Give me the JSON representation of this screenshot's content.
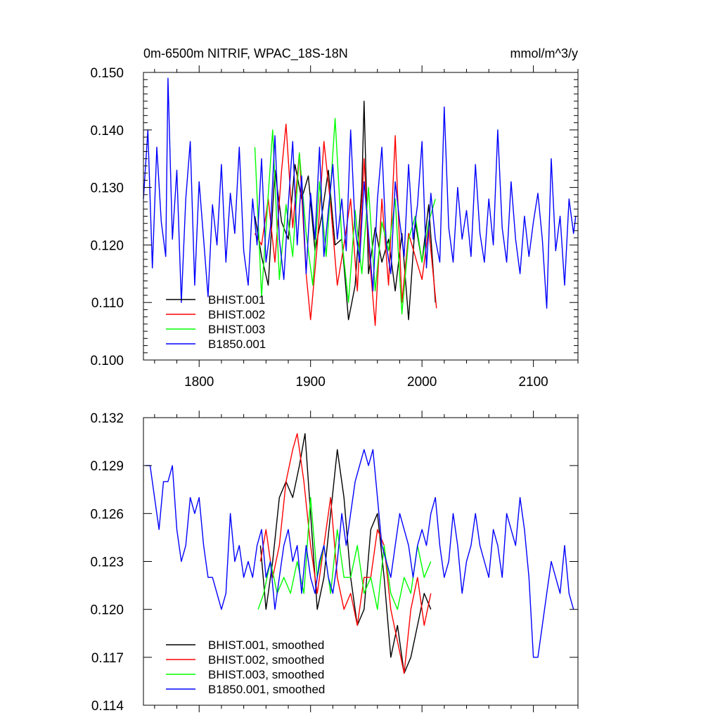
{
  "chart_data": [
    {
      "type": "line",
      "title": "0m-6500m NITRIF, WPAC_18S-18N",
      "units": "mmol/m^3/y",
      "xlim": [
        1750,
        2140
      ],
      "ylim": [
        0.1,
        0.15
      ],
      "xticks": [
        1800,
        1900,
        2000,
        2100
      ],
      "xtick_labels": [
        "1800",
        "1900",
        "2000",
        "2100"
      ],
      "yticks": [
        0.1,
        0.11,
        0.12,
        0.13,
        0.14,
        0.15
      ],
      "ytick_labels": [
        "0.100",
        "0.110",
        "0.120",
        "0.130",
        "0.140",
        "0.150"
      ],
      "legend_position": "bottom-left",
      "series": [
        {
          "name": "BHIST.001",
          "color": "#000000",
          "x": [
            1850,
            1856,
            1862,
            1868,
            1874,
            1880,
            1886,
            1892,
            1898,
            1904,
            1910,
            1916,
            1922,
            1928,
            1934,
            1940,
            1946,
            1948,
            1952,
            1958,
            1964,
            1970,
            1976,
            1982,
            1988,
            1994,
            2000,
            2006,
            2012
          ],
          "y": [
            0.125,
            0.118,
            0.113,
            0.133,
            0.124,
            0.121,
            0.134,
            0.128,
            0.132,
            0.119,
            0.125,
            0.133,
            0.12,
            0.121,
            0.107,
            0.113,
            0.13,
            0.145,
            0.115,
            0.123,
            0.117,
            0.121,
            0.112,
            0.122,
            0.107,
            0.124,
            0.117,
            0.127,
            0.11
          ]
        },
        {
          "name": "BHIST.002",
          "color": "#ff0000",
          "x": [
            1850,
            1856,
            1862,
            1868,
            1874,
            1878,
            1884,
            1890,
            1896,
            1900,
            1906,
            1912,
            1918,
            1924,
            1930,
            1936,
            1942,
            1948,
            1952,
            1958,
            1964,
            1970,
            1976,
            1982,
            1988,
            1994,
            2000,
            2006,
            2013
          ],
          "y": [
            0.122,
            0.12,
            0.128,
            0.117,
            0.133,
            0.141,
            0.123,
            0.136,
            0.115,
            0.107,
            0.12,
            0.138,
            0.127,
            0.113,
            0.12,
            0.128,
            0.112,
            0.135,
            0.12,
            0.106,
            0.128,
            0.113,
            0.139,
            0.11,
            0.122,
            0.118,
            0.114,
            0.123,
            0.109
          ]
        },
        {
          "name": "BHIST.003",
          "color": "#00ff00",
          "x": [
            1850,
            1856,
            1860,
            1866,
            1872,
            1878,
            1884,
            1890,
            1896,
            1902,
            1908,
            1914,
            1922,
            1928,
            1934,
            1940,
            1946,
            1952,
            1958,
            1964,
            1970,
            1976,
            1982,
            1988,
            1994,
            2000,
            2006,
            2012
          ],
          "y": [
            0.137,
            0.111,
            0.123,
            0.14,
            0.114,
            0.127,
            0.118,
            0.136,
            0.122,
            0.113,
            0.131,
            0.118,
            0.142,
            0.121,
            0.11,
            0.126,
            0.115,
            0.13,
            0.112,
            0.124,
            0.119,
            0.128,
            0.108,
            0.121,
            0.125,
            0.117,
            0.124,
            0.128
          ]
        },
        {
          "name": "B1850.001",
          "color": "#0000ff",
          "x": [
            1750,
            1754,
            1758,
            1762,
            1766,
            1770,
            1772,
            1776,
            1780,
            1784,
            1788,
            1792,
            1796,
            1800,
            1804,
            1808,
            1812,
            1816,
            1820,
            1824,
            1828,
            1832,
            1836,
            1840,
            1844,
            1848,
            1852,
            1856,
            1860,
            1864,
            1868,
            1872,
            1876,
            1880,
            1884,
            1888,
            1892,
            1896,
            1900,
            1904,
            1908,
            1912,
            1916,
            1920,
            1924,
            1928,
            1932,
            1936,
            1940,
            1944,
            1948,
            1952,
            1956,
            1960,
            1964,
            1968,
            1972,
            1976,
            1980,
            1984,
            1988,
            1992,
            1996,
            2000,
            2004,
            2008,
            2012,
            2016,
            2020,
            2024,
            2028,
            2032,
            2036,
            2040,
            2044,
            2048,
            2052,
            2056,
            2060,
            2064,
            2068,
            2072,
            2076,
            2080,
            2084,
            2088,
            2092,
            2096,
            2100,
            2104,
            2108,
            2112,
            2116,
            2120,
            2124,
            2128,
            2132,
            2136,
            2138
          ],
          "y": [
            0.128,
            0.14,
            0.116,
            0.137,
            0.124,
            0.118,
            0.149,
            0.121,
            0.133,
            0.11,
            0.128,
            0.138,
            0.113,
            0.131,
            0.121,
            0.111,
            0.127,
            0.12,
            0.134,
            0.117,
            0.129,
            0.122,
            0.137,
            0.119,
            0.113,
            0.128,
            0.12,
            0.135,
            0.117,
            0.123,
            0.139,
            0.121,
            0.114,
            0.127,
            0.138,
            0.12,
            0.132,
            0.115,
            0.129,
            0.121,
            0.137,
            0.118,
            0.126,
            0.134,
            0.121,
            0.128,
            0.119,
            0.14,
            0.123,
            0.117,
            0.131,
            0.122,
            0.112,
            0.128,
            0.137,
            0.12,
            0.115,
            0.131,
            0.124,
            0.118,
            0.134,
            0.121,
            0.127,
            0.138,
            0.116,
            0.129,
            0.121,
            0.117,
            0.144,
            0.123,
            0.117,
            0.13,
            0.121,
            0.126,
            0.118,
            0.134,
            0.122,
            0.117,
            0.128,
            0.12,
            0.14,
            0.123,
            0.117,
            0.131,
            0.121,
            0.115,
            0.125,
            0.118,
            0.124,
            0.129,
            0.121,
            0.109,
            0.135,
            0.119,
            0.125,
            0.113,
            0.128,
            0.122,
            0.125
          ]
        }
      ]
    },
    {
      "type": "line",
      "title": "",
      "xlim": [
        1750,
        2140
      ],
      "ylim": [
        0.114,
        0.132
      ],
      "xticks": [
        1800,
        1900,
        2000,
        2100
      ],
      "xtick_labels": [],
      "yticks": [
        0.114,
        0.117,
        0.12,
        0.123,
        0.126,
        0.129,
        0.132
      ],
      "ytick_labels": [
        "0.114",
        "0.117",
        "0.120",
        "0.123",
        "0.126",
        "0.129",
        "0.132"
      ],
      "legend_position": "bottom-left",
      "series": [
        {
          "name": "BHIST.001, smoothed",
          "color": "#000000",
          "x": [
            1855,
            1860,
            1866,
            1872,
            1878,
            1884,
            1890,
            1895,
            1900,
            1906,
            1912,
            1918,
            1924,
            1930,
            1936,
            1942,
            1948,
            1954,
            1960,
            1966,
            1972,
            1978,
            1984,
            1990,
            1996,
            2002,
            2008
          ],
          "y": [
            0.124,
            0.12,
            0.123,
            0.127,
            0.128,
            0.127,
            0.129,
            0.131,
            0.126,
            0.12,
            0.122,
            0.126,
            0.13,
            0.127,
            0.122,
            0.119,
            0.12,
            0.125,
            0.126,
            0.122,
            0.117,
            0.119,
            0.116,
            0.117,
            0.119,
            0.121,
            0.12
          ]
        },
        {
          "name": "BHIST.002, smoothed",
          "color": "#ff0000",
          "x": [
            1855,
            1860,
            1866,
            1872,
            1878,
            1884,
            1888,
            1894,
            1900,
            1906,
            1912,
            1918,
            1924,
            1930,
            1936,
            1942,
            1948,
            1954,
            1960,
            1966,
            1972,
            1978,
            1984,
            1990,
            1996,
            2002,
            2008
          ],
          "y": [
            0.123,
            0.125,
            0.122,
            0.124,
            0.128,
            0.13,
            0.131,
            0.128,
            0.124,
            0.121,
            0.124,
            0.127,
            0.122,
            0.12,
            0.121,
            0.119,
            0.122,
            0.122,
            0.125,
            0.124,
            0.12,
            0.118,
            0.116,
            0.12,
            0.122,
            0.119,
            0.121
          ]
        },
        {
          "name": "BHIST.003, smoothed",
          "color": "#00ff00",
          "x": [
            1853,
            1858,
            1864,
            1870,
            1876,
            1882,
            1888,
            1894,
            1900,
            1906,
            1912,
            1918,
            1924,
            1930,
            1936,
            1942,
            1948,
            1954,
            1960,
            1966,
            1972,
            1978,
            1984,
            1990,
            1996,
            2002,
            2008
          ],
          "y": [
            0.12,
            0.121,
            0.123,
            0.121,
            0.122,
            0.121,
            0.123,
            0.121,
            0.127,
            0.122,
            0.124,
            0.121,
            0.125,
            0.122,
            0.122,
            0.124,
            0.121,
            0.122,
            0.12,
            0.124,
            0.121,
            0.12,
            0.122,
            0.121,
            0.124,
            0.122,
            0.123
          ]
        },
        {
          "name": "B1850.001, smoothed",
          "color": "#0000ff",
          "x": [
            1752,
            1756,
            1760,
            1764,
            1768,
            1772,
            1776,
            1780,
            1784,
            1788,
            1792,
            1796,
            1800,
            1804,
            1808,
            1812,
            1816,
            1820,
            1824,
            1828,
            1832,
            1836,
            1840,
            1844,
            1848,
            1852,
            1856,
            1860,
            1864,
            1868,
            1872,
            1876,
            1880,
            1884,
            1888,
            1892,
            1896,
            1900,
            1904,
            1908,
            1912,
            1916,
            1920,
            1924,
            1928,
            1932,
            1936,
            1940,
            1944,
            1948,
            1952,
            1956,
            1960,
            1964,
            1968,
            1972,
            1976,
            1980,
            1984,
            1988,
            1992,
            1996,
            2000,
            2004,
            2008,
            2012,
            2016,
            2020,
            2024,
            2028,
            2032,
            2036,
            2040,
            2044,
            2048,
            2052,
            2056,
            2060,
            2064,
            2068,
            2072,
            2076,
            2080,
            2084,
            2088,
            2092,
            2096,
            2100,
            2104,
            2108,
            2112,
            2116,
            2120,
            2124,
            2128,
            2132,
            2136
          ],
          "y": [
            0.129,
            0.129,
            0.127,
            0.125,
            0.128,
            0.128,
            0.129,
            0.125,
            0.123,
            0.124,
            0.127,
            0.126,
            0.127,
            0.124,
            0.122,
            0.122,
            0.121,
            0.12,
            0.121,
            0.126,
            0.123,
            0.124,
            0.122,
            0.123,
            0.122,
            0.124,
            0.125,
            0.122,
            0.123,
            0.12,
            0.122,
            0.124,
            0.125,
            0.123,
            0.124,
            0.121,
            0.124,
            0.122,
            0.121,
            0.123,
            0.124,
            0.122,
            0.121,
            0.123,
            0.126,
            0.124,
            0.126,
            0.128,
            0.129,
            0.13,
            0.129,
            0.13,
            0.127,
            0.124,
            0.123,
            0.122,
            0.124,
            0.126,
            0.125,
            0.124,
            0.122,
            0.124,
            0.125,
            0.124,
            0.126,
            0.127,
            0.124,
            0.122,
            0.123,
            0.126,
            0.124,
            0.121,
            0.123,
            0.124,
            0.126,
            0.124,
            0.123,
            0.122,
            0.125,
            0.124,
            0.122,
            0.126,
            0.125,
            0.124,
            0.127,
            0.125,
            0.122,
            0.117,
            0.117,
            0.119,
            0.121,
            0.123,
            0.122,
            0.121,
            0.124,
            0.121,
            0.12
          ]
        }
      ]
    }
  ]
}
